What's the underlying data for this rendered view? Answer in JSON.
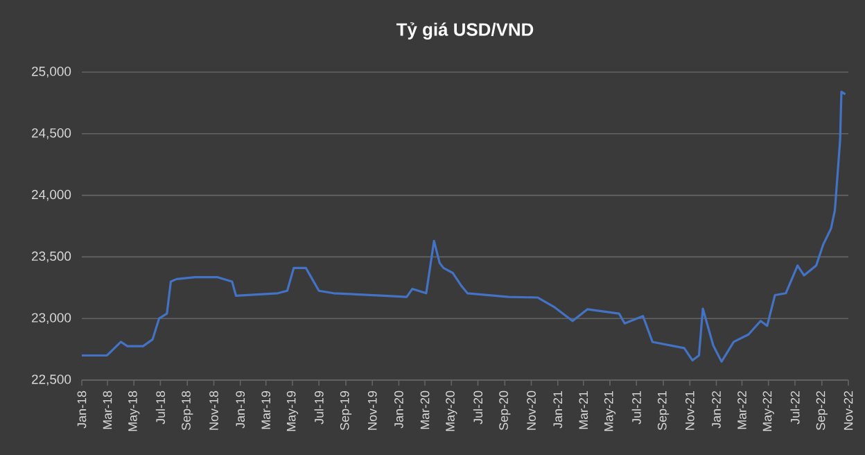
{
  "chart_data": {
    "type": "line",
    "title": "Tỷ giá USD/VND",
    "color": "#4472c4",
    "grid": "y",
    "marker": "none",
    "line_style": "solid",
    "xlim": [
      "2018-01-01",
      "2022-11-01"
    ],
    "ylim": [
      22500,
      25000
    ],
    "yticks": [
      {
        "value": 22500,
        "label": "22,500"
      },
      {
        "value": 23000,
        "label": "23,000"
      },
      {
        "value": 23500,
        "label": "23,500"
      },
      {
        "value": 24000,
        "label": "24,000"
      },
      {
        "value": 24500,
        "label": "24,500"
      },
      {
        "value": 25000,
        "label": "25,000"
      }
    ],
    "xticks": [
      {
        "value": "2018-01",
        "label": "Jan-18"
      },
      {
        "value": "2018-03",
        "label": "Mar-18"
      },
      {
        "value": "2018-05",
        "label": "May-18"
      },
      {
        "value": "2018-07",
        "label": "Jul-18"
      },
      {
        "value": "2018-09",
        "label": "Sep-18"
      },
      {
        "value": "2018-11",
        "label": "Nov-18"
      },
      {
        "value": "2019-01",
        "label": "Jan-19"
      },
      {
        "value": "2019-03",
        "label": "Mar-19"
      },
      {
        "value": "2019-05",
        "label": "May-19"
      },
      {
        "value": "2019-07",
        "label": "Jul-19"
      },
      {
        "value": "2019-09",
        "label": "Sep-19"
      },
      {
        "value": "2019-11",
        "label": "Nov-19"
      },
      {
        "value": "2020-01",
        "label": "Jan-20"
      },
      {
        "value": "2020-03",
        "label": "Mar-20"
      },
      {
        "value": "2020-05",
        "label": "May-20"
      },
      {
        "value": "2020-07",
        "label": "Jul-20"
      },
      {
        "value": "2020-09",
        "label": "Sep-20"
      },
      {
        "value": "2020-11",
        "label": "Nov-20"
      },
      {
        "value": "2021-01",
        "label": "Jan-21"
      },
      {
        "value": "2021-03",
        "label": "Mar-21"
      },
      {
        "value": "2021-05",
        "label": "May-21"
      },
      {
        "value": "2021-07",
        "label": "Jul-21"
      },
      {
        "value": "2021-09",
        "label": "Sep-21"
      },
      {
        "value": "2021-11",
        "label": "Nov-21"
      },
      {
        "value": "2022-01",
        "label": "Jan-22"
      },
      {
        "value": "2022-03",
        "label": "Mar-22"
      },
      {
        "value": "2022-05",
        "label": "May-22"
      },
      {
        "value": "2022-07",
        "label": "Jul-22"
      },
      {
        "value": "2022-09",
        "label": "Sep-22"
      },
      {
        "value": "2022-11",
        "label": "Nov-22"
      }
    ],
    "x": [
      "2018-01-01",
      "2018-02-28",
      "2018-04-01",
      "2018-04-16",
      "2018-05-22",
      "2018-06-13",
      "2018-06-28",
      "2018-07-16",
      "2018-07-25",
      "2018-08-07",
      "2018-09-19",
      "2018-11-10",
      "2018-12-13",
      "2018-12-22",
      "2019-03-28",
      "2019-04-19",
      "2019-05-04",
      "2019-06-01",
      "2019-07-01",
      "2019-08-04",
      "2019-11-28",
      "2020-01-19",
      "2020-02-01",
      "2020-03-04",
      "2020-03-22",
      "2020-04-04",
      "2020-04-13",
      "2020-05-04",
      "2020-05-25",
      "2020-06-07",
      "2020-09-10",
      "2020-11-16",
      "2020-12-25",
      "2021-02-04",
      "2021-03-10",
      "2021-05-22",
      "2021-06-04",
      "2021-07-16",
      "2021-08-07",
      "2021-10-19",
      "2021-11-07",
      "2021-11-22",
      "2021-12-01",
      "2021-12-25",
      "2022-01-13",
      "2022-02-10",
      "2022-03-16",
      "2022-04-13",
      "2022-04-28",
      "2022-05-16",
      "2022-06-10",
      "2022-07-07",
      "2022-07-22",
      "2022-08-19",
      "2022-09-04",
      "2022-09-22",
      "2022-10-01",
      "2022-10-13",
      "2022-10-16",
      "2022-10-25"
    ],
    "values": [
      22700,
      22700,
      22810,
      22775,
      22775,
      22830,
      23000,
      23040,
      23300,
      23320,
      23335,
      23335,
      23300,
      23185,
      23205,
      23225,
      23410,
      23410,
      23225,
      23205,
      23185,
      23175,
      23240,
      23205,
      23630,
      23450,
      23410,
      23370,
      23260,
      23205,
      23175,
      23170,
      23090,
      22980,
      23075,
      23040,
      22960,
      23020,
      22810,
      22760,
      22660,
      22700,
      23080,
      22780,
      22650,
      22810,
      22870,
      22980,
      22940,
      23190,
      23205,
      23430,
      23350,
      23430,
      23600,
      23730,
      23880,
      24450,
      24840,
      24820
    ]
  }
}
